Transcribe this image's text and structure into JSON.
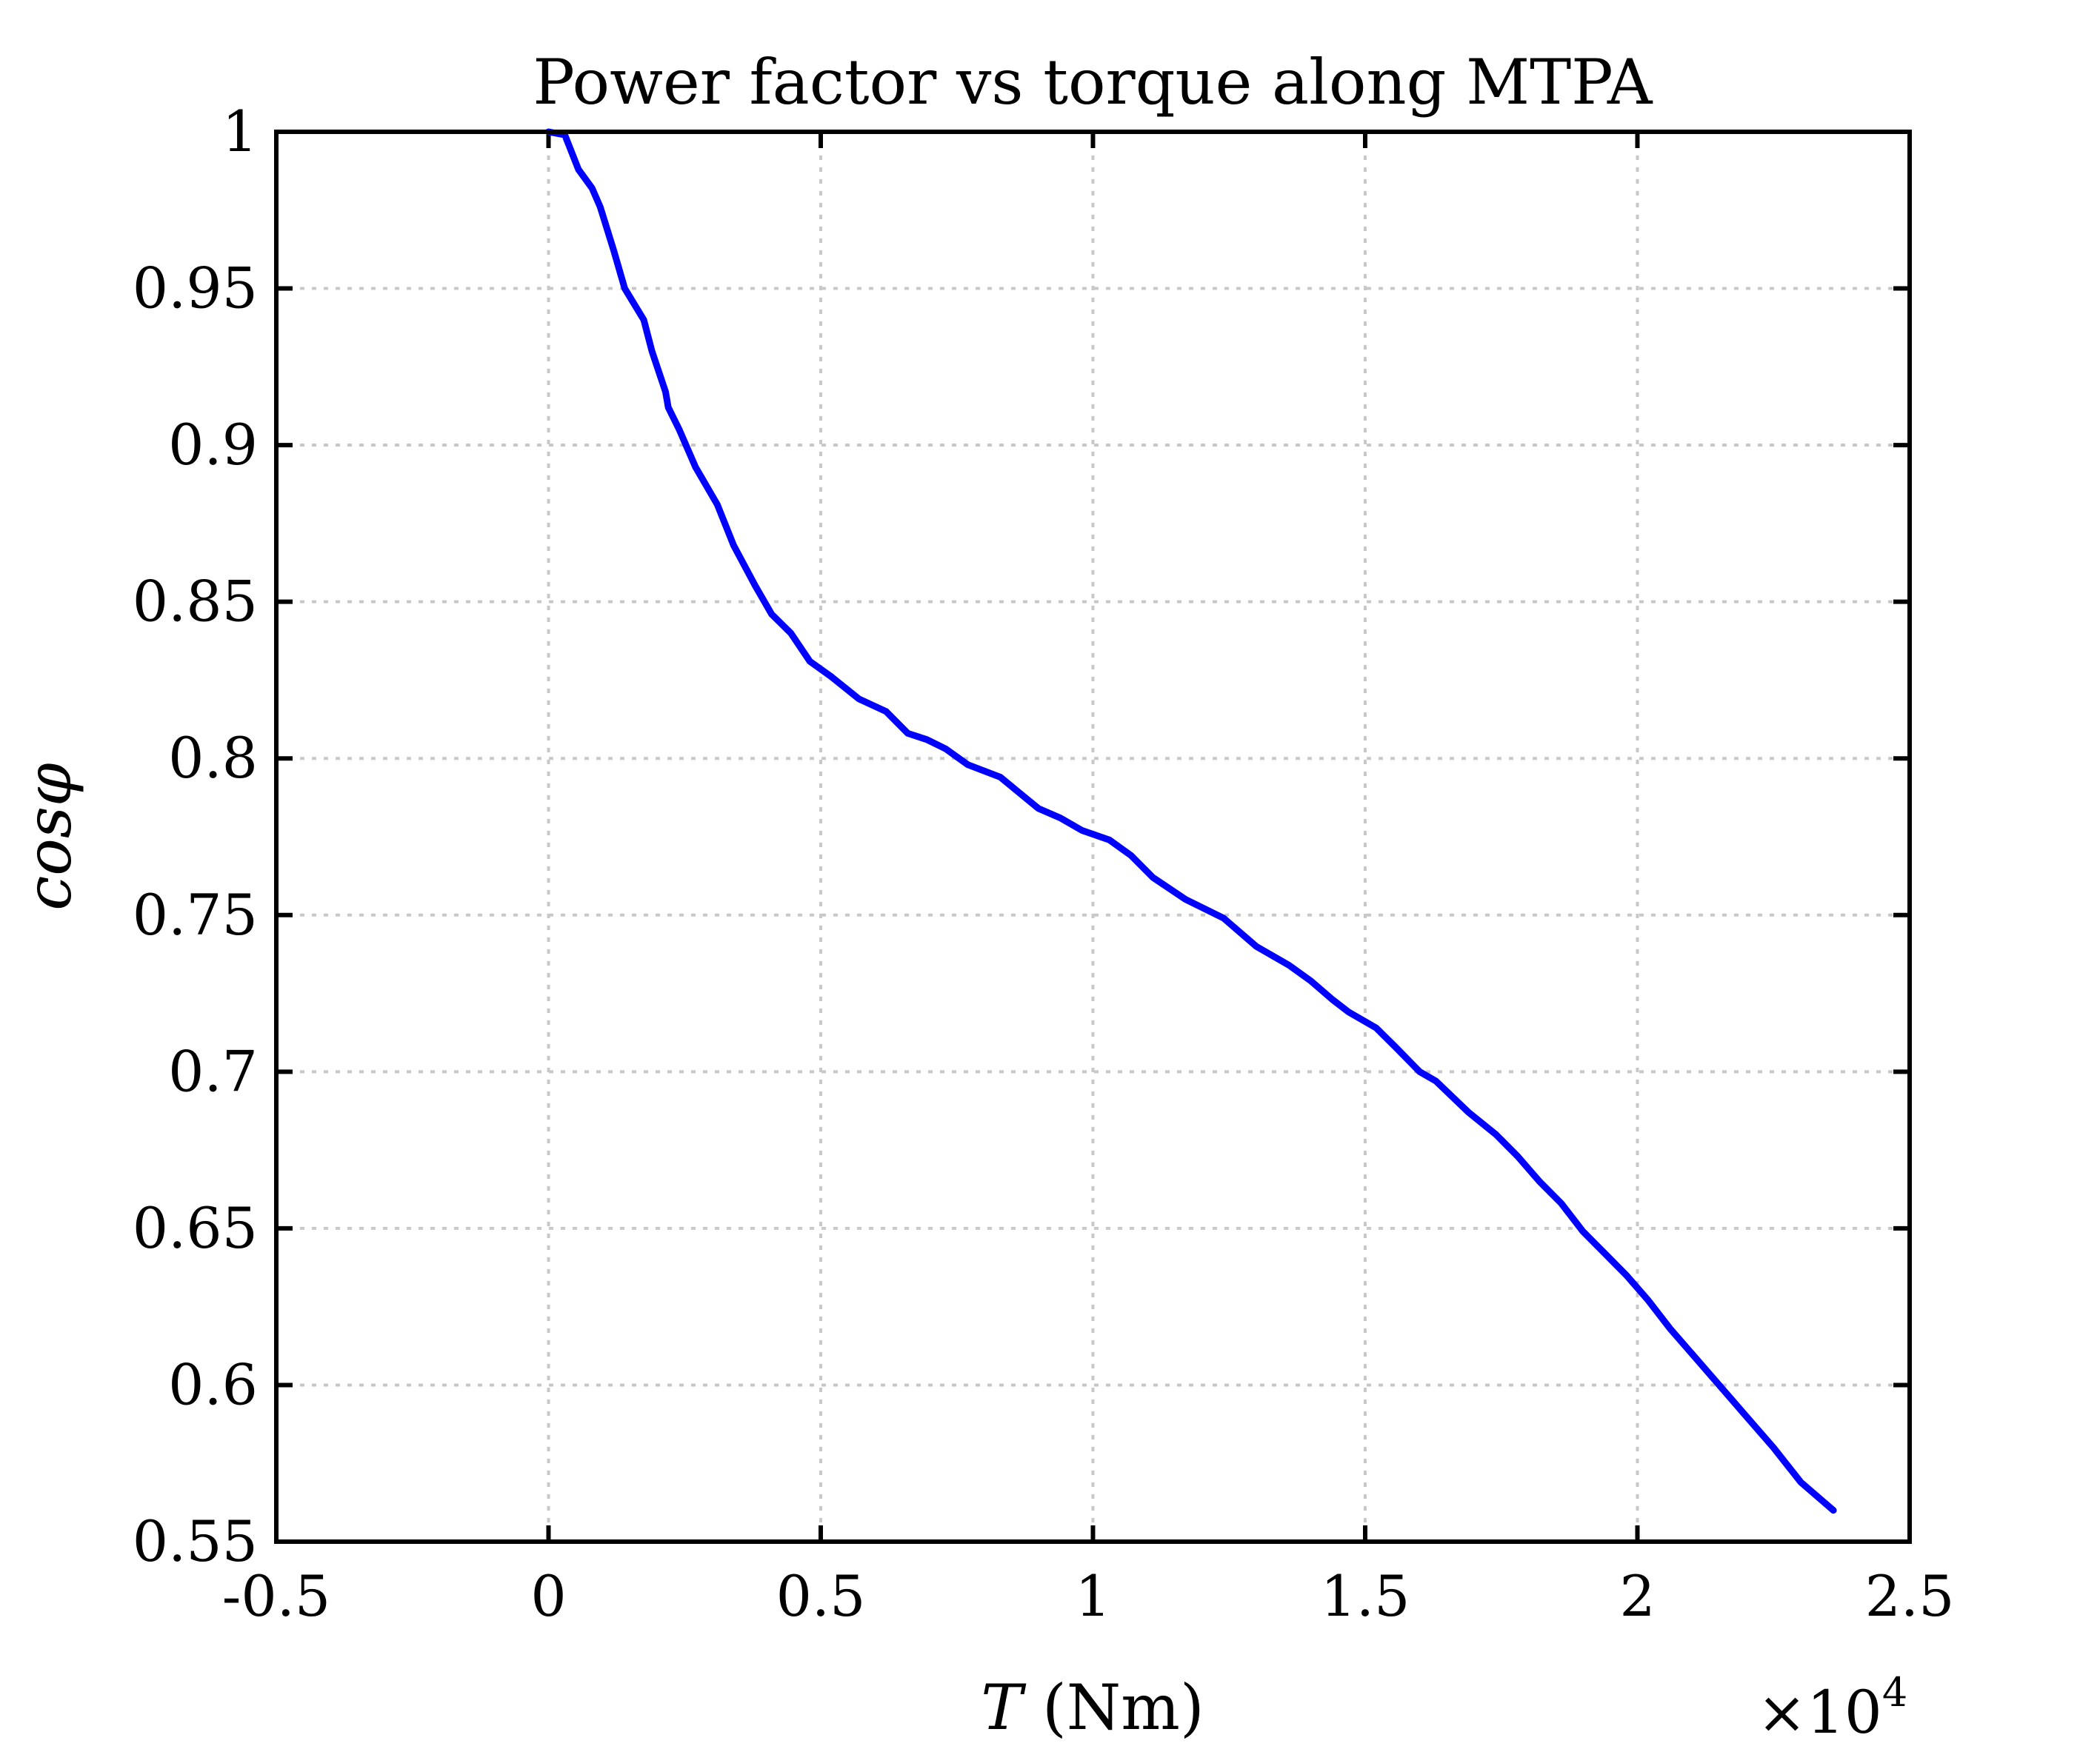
{
  "chart_data": {
    "type": "line",
    "title": "Power factor vs torque along MTPA",
    "xlabel_var": "T",
    "xlabel_unit": "(Nm)",
    "ylabel": "cosφ",
    "x_multiplier_base": "×10",
    "x_multiplier_exp": "4",
    "xlim": [
      -0.5,
      2.5
    ],
    "ylim": [
      0.55,
      1.0
    ],
    "xticks": [
      -0.5,
      0,
      0.5,
      1,
      1.5,
      2,
      2.5
    ],
    "xtick_labels": [
      "-0.5",
      "0",
      "0.5",
      "1",
      "1.5",
      "2",
      "2.5"
    ],
    "yticks": [
      0.55,
      0.6,
      0.65,
      0.7,
      0.75,
      0.8,
      0.85,
      0.9,
      0.95,
      1.0
    ],
    "ytick_labels": [
      "0.55",
      "0.6",
      "0.65",
      "0.7",
      "0.75",
      "0.8",
      "0.85",
      "0.9",
      "0.95",
      "1"
    ],
    "grid": true,
    "colors": {
      "series": "#0000ff",
      "grid": "#c8c8c8",
      "frame": "#000000"
    },
    "series": [
      {
        "x": [
          0.0,
          0.03,
          0.055,
          0.08,
          0.095,
          0.12,
          0.14,
          0.175,
          0.19,
          0.215,
          0.22,
          0.24,
          0.27,
          0.31,
          0.34,
          0.38,
          0.41,
          0.445,
          0.48,
          0.52,
          0.57,
          0.62,
          0.66,
          0.695,
          0.73,
          0.77,
          0.83,
          0.865,
          0.9,
          0.94,
          0.98,
          1.03,
          1.07,
          1.11,
          1.17,
          1.24,
          1.3,
          1.36,
          1.4,
          1.44,
          1.47,
          1.52,
          1.555,
          1.6,
          1.63,
          1.69,
          1.74,
          1.78,
          1.82,
          1.86,
          1.9,
          1.94,
          1.98,
          2.02,
          2.06,
          2.1,
          2.15,
          2.2,
          2.25,
          2.3,
          2.36
        ],
        "y": [
          1.0,
          0.999,
          0.988,
          0.982,
          0.976,
          0.962,
          0.95,
          0.94,
          0.93,
          0.917,
          0.912,
          0.905,
          0.893,
          0.881,
          0.868,
          0.855,
          0.846,
          0.84,
          0.831,
          0.826,
          0.819,
          0.815,
          0.808,
          0.806,
          0.803,
          0.798,
          0.794,
          0.789,
          0.784,
          0.781,
          0.777,
          0.774,
          0.769,
          0.762,
          0.755,
          0.749,
          0.74,
          0.734,
          0.729,
          0.723,
          0.719,
          0.714,
          0.708,
          0.7,
          0.697,
          0.687,
          0.68,
          0.673,
          0.665,
          0.658,
          0.649,
          0.642,
          0.635,
          0.627,
          0.618,
          0.61,
          0.6,
          0.59,
          0.58,
          0.569,
          0.56
        ]
      }
    ]
  }
}
